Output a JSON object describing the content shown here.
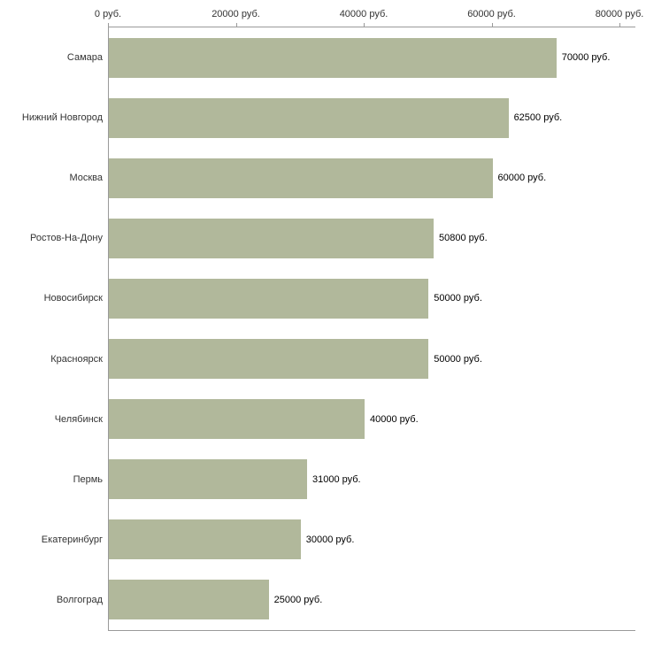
{
  "chart_data": {
    "type": "bar",
    "orientation": "horizontal",
    "title": "",
    "xlabel": "",
    "ylabel": "",
    "categories": [
      "Самара",
      "Нижний Новгород",
      "Москва",
      "Ростов-На-Дону",
      "Новосибирск",
      "Красноярск",
      "Челябинск",
      "Пермь",
      "Екатеринбург",
      "Волгоград"
    ],
    "values": [
      70000,
      62500,
      60000,
      50800,
      50000,
      50000,
      40000,
      31000,
      30000,
      25000
    ],
    "value_labels": [
      "70000 руб.",
      "62500 руб.",
      "60000 руб.",
      "50800 руб.",
      "50000 руб.",
      "40000 руб.",
      "31000 руб.",
      "30000 руб.",
      "25000 руб."
    ],
    "value_labels_full": [
      "70000 руб.",
      "62500 руб.",
      "60000 руб.",
      "50800 руб.",
      "50000 руб.",
      "50000 руб.",
      "40000 руб.",
      "31000 руб.",
      "30000 руб.",
      "25000 руб."
    ],
    "x_ticks": [
      0,
      20000,
      40000,
      60000,
      80000
    ],
    "x_tick_labels": [
      "0 руб.",
      "20000 руб.",
      "40000 руб.",
      "60000 руб.",
      "80000 руб."
    ],
    "xlim": [
      0,
      80000
    ],
    "grid": false,
    "legend": null,
    "bar_color": "#b1b89b",
    "axis_color": "#9a9a9a",
    "text_color": "#333333"
  }
}
